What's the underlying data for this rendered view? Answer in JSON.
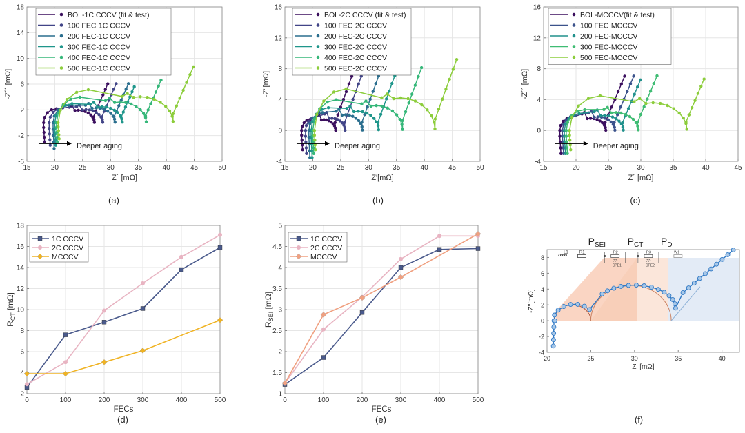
{
  "captions": [
    "(a)",
    "(b)",
    "(c)",
    "(d)",
    "(e)",
    "(f)"
  ],
  "colors": {
    "viridis6": [
      "#3b0f5e",
      "#414487",
      "#2a6e8e",
      "#1f968b",
      "#35b779",
      "#8ccd3b"
    ],
    "viridis5": [
      "#3b0f5e",
      "#3b528b",
      "#21918c",
      "#3fbc73",
      "#8ccd3b"
    ],
    "oneC": "#4a5a8c",
    "twoC": "#e8b4c2",
    "mcccv": "#f0b323",
    "mcccv_e": "#f0a080"
  },
  "chart_data": [
    {
      "id": "a",
      "type": "line",
      "xlabel": "Z´ [mΩ]",
      "ylabel": "-Z´´ [mΩ]",
      "xlim": [
        15,
        50
      ],
      "ylim": [
        -6,
        18
      ],
      "xticks": [
        15,
        20,
        25,
        30,
        35,
        40,
        45,
        50
      ],
      "yticks": [
        -6,
        -2,
        2,
        6,
        10,
        14,
        18
      ],
      "annotation": "Deeper aging",
      "series": [
        {
          "name": "BOL-1C CCCV (fit & test)",
          "R0": 18.0,
          "Rct": 8.5,
          "tail": 6.0,
          "ind": 3.0
        },
        {
          "name": "100 FEC-1C CCCV",
          "R0": 19.0,
          "Rct": 9.0,
          "tail": 6.0,
          "ind": 3.5
        },
        {
          "name": "200 FEC-1C CCCV",
          "R0": 19.7,
          "Rct": 10.5,
          "tail": 6.0,
          "ind": 4.0
        },
        {
          "name": "300 FEC-1C CCCV",
          "R0": 20.0,
          "Rct": 11.5,
          "tail": 5.5,
          "ind": 3.5
        },
        {
          "name": "400 FEC-1C CCCV",
          "R0": 20.3,
          "Rct": 15.5,
          "tail": 6.5,
          "ind": 3.0
        },
        {
          "name": "500 FEC-1C CCCV",
          "R0": 20.6,
          "Rct": 20.0,
          "tail": 8.5,
          "ind": 2.5
        }
      ]
    },
    {
      "id": "b",
      "type": "line",
      "xlabel": "Z'[mΩ]",
      "ylabel": "-Z''[mΩ]",
      "xlim": [
        15,
        50
      ],
      "ylim": [
        -4,
        16
      ],
      "xticks": [
        15,
        20,
        25,
        30,
        35,
        40,
        45,
        50
      ],
      "yticks": [
        -4,
        0,
        4,
        8,
        12,
        16
      ],
      "annotation": "Deeper aging",
      "series": [
        {
          "name": "BOL-2C CCCV (fit & test)",
          "R0": 18.0,
          "Rct": 5.5,
          "tail": 7.0,
          "ind": 2.5
        },
        {
          "name": "100 FEC-2C CCCV",
          "R0": 18.7,
          "Rct": 6.5,
          "tail": 7.0,
          "ind": 3.0
        },
        {
          "name": "200 FEC-2C CCCV",
          "R0": 19.3,
          "Rct": 9.0,
          "tail": 7.0,
          "ind": 3.5
        },
        {
          "name": "300 FEC-2C CCCV",
          "R0": 19.7,
          "Rct": 11.5,
          "tail": 7.0,
          "ind": 3.5
        },
        {
          "name": "400 FEC-2C CCCV",
          "R0": 20.0,
          "Rct": 15.5,
          "tail": 8.0,
          "ind": 3.0
        },
        {
          "name": "500 FEC-2C CCCV",
          "R0": 20.3,
          "Rct": 21.0,
          "tail": 9.0,
          "ind": 2.5
        }
      ]
    },
    {
      "id": "c",
      "type": "line",
      "xlabel": "Z´ [mΩ]",
      "ylabel": "-Z´´ [mΩ]",
      "xlim": [
        15,
        45
      ],
      "ylim": [
        -4,
        16
      ],
      "xticks": [
        15,
        20,
        25,
        30,
        35,
        40,
        45
      ],
      "yticks": [
        -4,
        0,
        4,
        8,
        12,
        16
      ],
      "annotation": "Deeper aging",
      "series": [
        {
          "name": "BOL-MCCCV(fit & test)",
          "R0": 17.5,
          "Rct": 6.5,
          "tail": 7.0,
          "ind": 3.0
        },
        {
          "name": "100 FEC-MCCCV",
          "R0": 17.9,
          "Rct": 7.5,
          "tail": 7.0,
          "ind": 3.0
        },
        {
          "name": "200 FEC-MCCCV",
          "R0": 18.2,
          "Rct": 8.5,
          "tail": 6.5,
          "ind": 3.0
        },
        {
          "name": "300 FEC-MCCCV",
          "R0": 18.5,
          "Rct": 10.5,
          "tail": 7.0,
          "ind": 3.0
        },
        {
          "name": "500 FEC-MCCCV",
          "R0": 19.0,
          "Rct": 17.5,
          "tail": 6.5,
          "ind": 2.5
        }
      ]
    },
    {
      "id": "d",
      "type": "line",
      "xlabel": "FECs",
      "ylabel": "R_CT [mΩ]",
      "xlim": [
        0,
        500
      ],
      "ylim": [
        2,
        18
      ],
      "xticks": [
        0,
        100,
        200,
        300,
        400,
        500
      ],
      "yticks": [
        2,
        4,
        6,
        8,
        10,
        12,
        14,
        16,
        18
      ],
      "series": [
        {
          "name": "1C CCCV",
          "x": [
            0,
            100,
            200,
            300,
            400,
            500
          ],
          "y": [
            2.6,
            7.6,
            8.8,
            10.1,
            13.8,
            15.9
          ]
        },
        {
          "name": "2C CCCV",
          "x": [
            0,
            100,
            200,
            300,
            400,
            500
          ],
          "y": [
            2.9,
            5.0,
            9.9,
            12.5,
            15.0,
            17.1
          ]
        },
        {
          "name": "MCCCV",
          "x": [
            0,
            100,
            200,
            300,
            500
          ],
          "y": [
            3.9,
            3.9,
            5.0,
            6.1,
            9.0
          ]
        }
      ]
    },
    {
      "id": "e",
      "type": "line",
      "xlabel": "FECs",
      "ylabel": "R_SEI [mΩ]",
      "xlim": [
        0,
        500
      ],
      "ylim": [
        1,
        5
      ],
      "xticks": [
        0,
        100,
        200,
        300,
        400,
        500
      ],
      "yticks": [
        1,
        1.5,
        2,
        2.5,
        3,
        3.5,
        4,
        4.5,
        5
      ],
      "series": [
        {
          "name": "1C CCCV",
          "x": [
            0,
            100,
            200,
            300,
            400,
            500
          ],
          "y": [
            1.22,
            1.86,
            2.93,
            4.0,
            4.43,
            4.45
          ]
        },
        {
          "name": "2C CCCV",
          "x": [
            0,
            100,
            200,
            300,
            400,
            500
          ],
          "y": [
            1.25,
            2.53,
            3.3,
            4.2,
            4.75,
            4.75
          ]
        },
        {
          "name": "MCCCV",
          "x": [
            0,
            100,
            200,
            300,
            500
          ],
          "y": [
            1.25,
            2.88,
            3.28,
            3.77,
            4.8
          ]
        }
      ]
    },
    {
      "id": "f",
      "type": "line",
      "xlabel": "Z' [mΩ]",
      "ylabel": "-Z''[mΩ]",
      "xlim": [
        20,
        42
      ],
      "ylim": [
        -4,
        9
      ],
      "xticks": [
        20,
        25,
        30,
        35,
        40
      ],
      "yticks": [
        -4,
        -2,
        0,
        2,
        4,
        6,
        8
      ],
      "region_labels": {
        "sei": "P",
        "sei_sub": "SEI",
        "ct": "P",
        "ct_sub": "CT",
        "d": "P",
        "d_sub": "D"
      },
      "circuit_labels": [
        "L1",
        "R1",
        "R2",
        "CPE1",
        "R3",
        "CPE2",
        "W1"
      ],
      "series": [
        {
          "name": "spectrum",
          "R0": 20.7,
          "R1": 4.2,
          "R2": 9.0,
          "tail": 6.0,
          "ind": 3.0
        }
      ]
    }
  ]
}
